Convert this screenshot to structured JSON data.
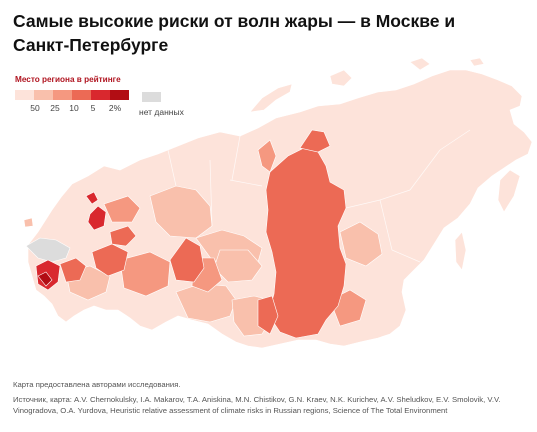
{
  "title": "Самые высокие риски от волн жары — в Москве и Санкт-Петербурге",
  "legend": {
    "title": "Место региона в рейтинге",
    "colors": [
      "#fde3da",
      "#f9c0ac",
      "#f59880",
      "#ec6a55",
      "#d9282e",
      "#b20d14"
    ],
    "ticks": [
      "50",
      "25",
      "10",
      "5",
      "2%"
    ],
    "nodata_color": "#dcdcdc",
    "nodata_label": "нет данных"
  },
  "credits": {
    "line1": "Карта предоставлена авторами исследования.",
    "line2": "Источник, карта: A.V. Chernokulsky, I.A. Makarov, T.A. Aniskina, M.N. Chistikov, G.N. Kraev, N.K. Kurichev, A.V. Sheludkov, E.V. Smolovik, V.V. Vinogradova, O.A. Yurdova, Heuristic relative assessment of climate risks in Russian regions, Science of The Total Environment"
  }
}
